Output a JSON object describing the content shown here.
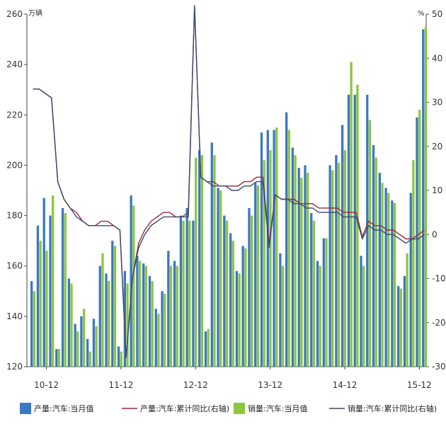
{
  "chart_data": {
    "type": "bar",
    "y_left_unit": "万辆",
    "y_right_unit": "%",
    "y_left_ticks": [
      120,
      140,
      160,
      180,
      200,
      220,
      240,
      260
    ],
    "y_right_ticks": [
      -30,
      -20,
      -10,
      0,
      10,
      20,
      30,
      40,
      50
    ],
    "ylim_left": [
      120,
      260
    ],
    "ylim_right": [
      -30,
      50
    ],
    "x_tick_labels": [
      "10-12",
      "11-12",
      "12-12",
      "13-12",
      "14-12",
      "15-12"
    ],
    "x_tick_indices": [
      2,
      14,
      26,
      38,
      50,
      62
    ],
    "grid": false,
    "legend_position": "bottom",
    "series": [
      {
        "name": "产量:汽车:当月值",
        "axis": "left",
        "color": "#3a78c2",
        "values": [
          154,
          176,
          187,
          180,
          127,
          183,
          155,
          137,
          140,
          131,
          139,
          160,
          157,
          170,
          128,
          158,
          188,
          164,
          161,
          156,
          143,
          150,
          166,
          162,
          180,
          183,
          178,
          206,
          134,
          209,
          191,
          180,
          173,
          158,
          168,
          183,
          193,
          213,
          214,
          214,
          165,
          221,
          207,
          199,
          200,
          181,
          162,
          171,
          200,
          204,
          216,
          228,
          228,
          164,
          228,
          208,
          197,
          191,
          186,
          152,
          156,
          189,
          219,
          254
        ]
      },
      {
        "name": "产量:汽车:累计同比(右轴)",
        "axis": "right",
        "type": "line",
        "color": "#9c2a3a",
        "values": [
          33,
          33,
          32,
          31,
          12,
          8,
          6,
          5,
          3,
          2,
          2,
          3,
          3,
          2,
          1,
          -28,
          -10,
          -2,
          1,
          3,
          4,
          5,
          5,
          4,
          4,
          5,
          52,
          13,
          12,
          12,
          11,
          11,
          11,
          11,
          12,
          12,
          13,
          13,
          -2,
          9,
          8,
          8,
          8,
          7,
          7,
          7,
          6,
          6,
          6,
          6,
          5,
          5,
          5,
          -0.5,
          3,
          2,
          2,
          1,
          1,
          0,
          -1,
          -1,
          0,
          1
        ]
      },
      {
        "name": "销量:汽车:当月值",
        "axis": "left",
        "color": "#8dc63f",
        "values": [
          150,
          170,
          166,
          188,
          127,
          181,
          153,
          134,
          143,
          126,
          136,
          165,
          154,
          168,
          126,
          153,
          184,
          162,
          160,
          154,
          141,
          149,
          160,
          160,
          178,
          178,
          203,
          204,
          135,
          204,
          190,
          178,
          170,
          157,
          167,
          180,
          192,
          202,
          206,
          215,
          160,
          214,
          204,
          195,
          197,
          178,
          160,
          171,
          198,
          201,
          206,
          241,
          232,
          160,
          218,
          203,
          193,
          189,
          185,
          151,
          165,
          202,
          222,
          255
        ]
      },
      {
        "name": "销量:汽车:累计同比(右轴)",
        "axis": "right",
        "type": "line",
        "color": "#3c4a70",
        "values": [
          33,
          33,
          32,
          31,
          12,
          8,
          6,
          4,
          3,
          2,
          2,
          2,
          2,
          2,
          1,
          -28,
          -10,
          -3,
          0,
          2,
          3,
          4,
          4,
          4,
          4,
          4,
          52,
          13,
          12,
          11,
          11,
          11,
          10,
          10,
          11,
          11,
          12,
          12,
          -3,
          9,
          8,
          8,
          7,
          7,
          6,
          6,
          5,
          5,
          5,
          5,
          4,
          4,
          4,
          -1,
          2,
          1,
          1,
          0,
          0,
          -1,
          -2,
          -1,
          -1,
          0
        ]
      }
    ]
  }
}
